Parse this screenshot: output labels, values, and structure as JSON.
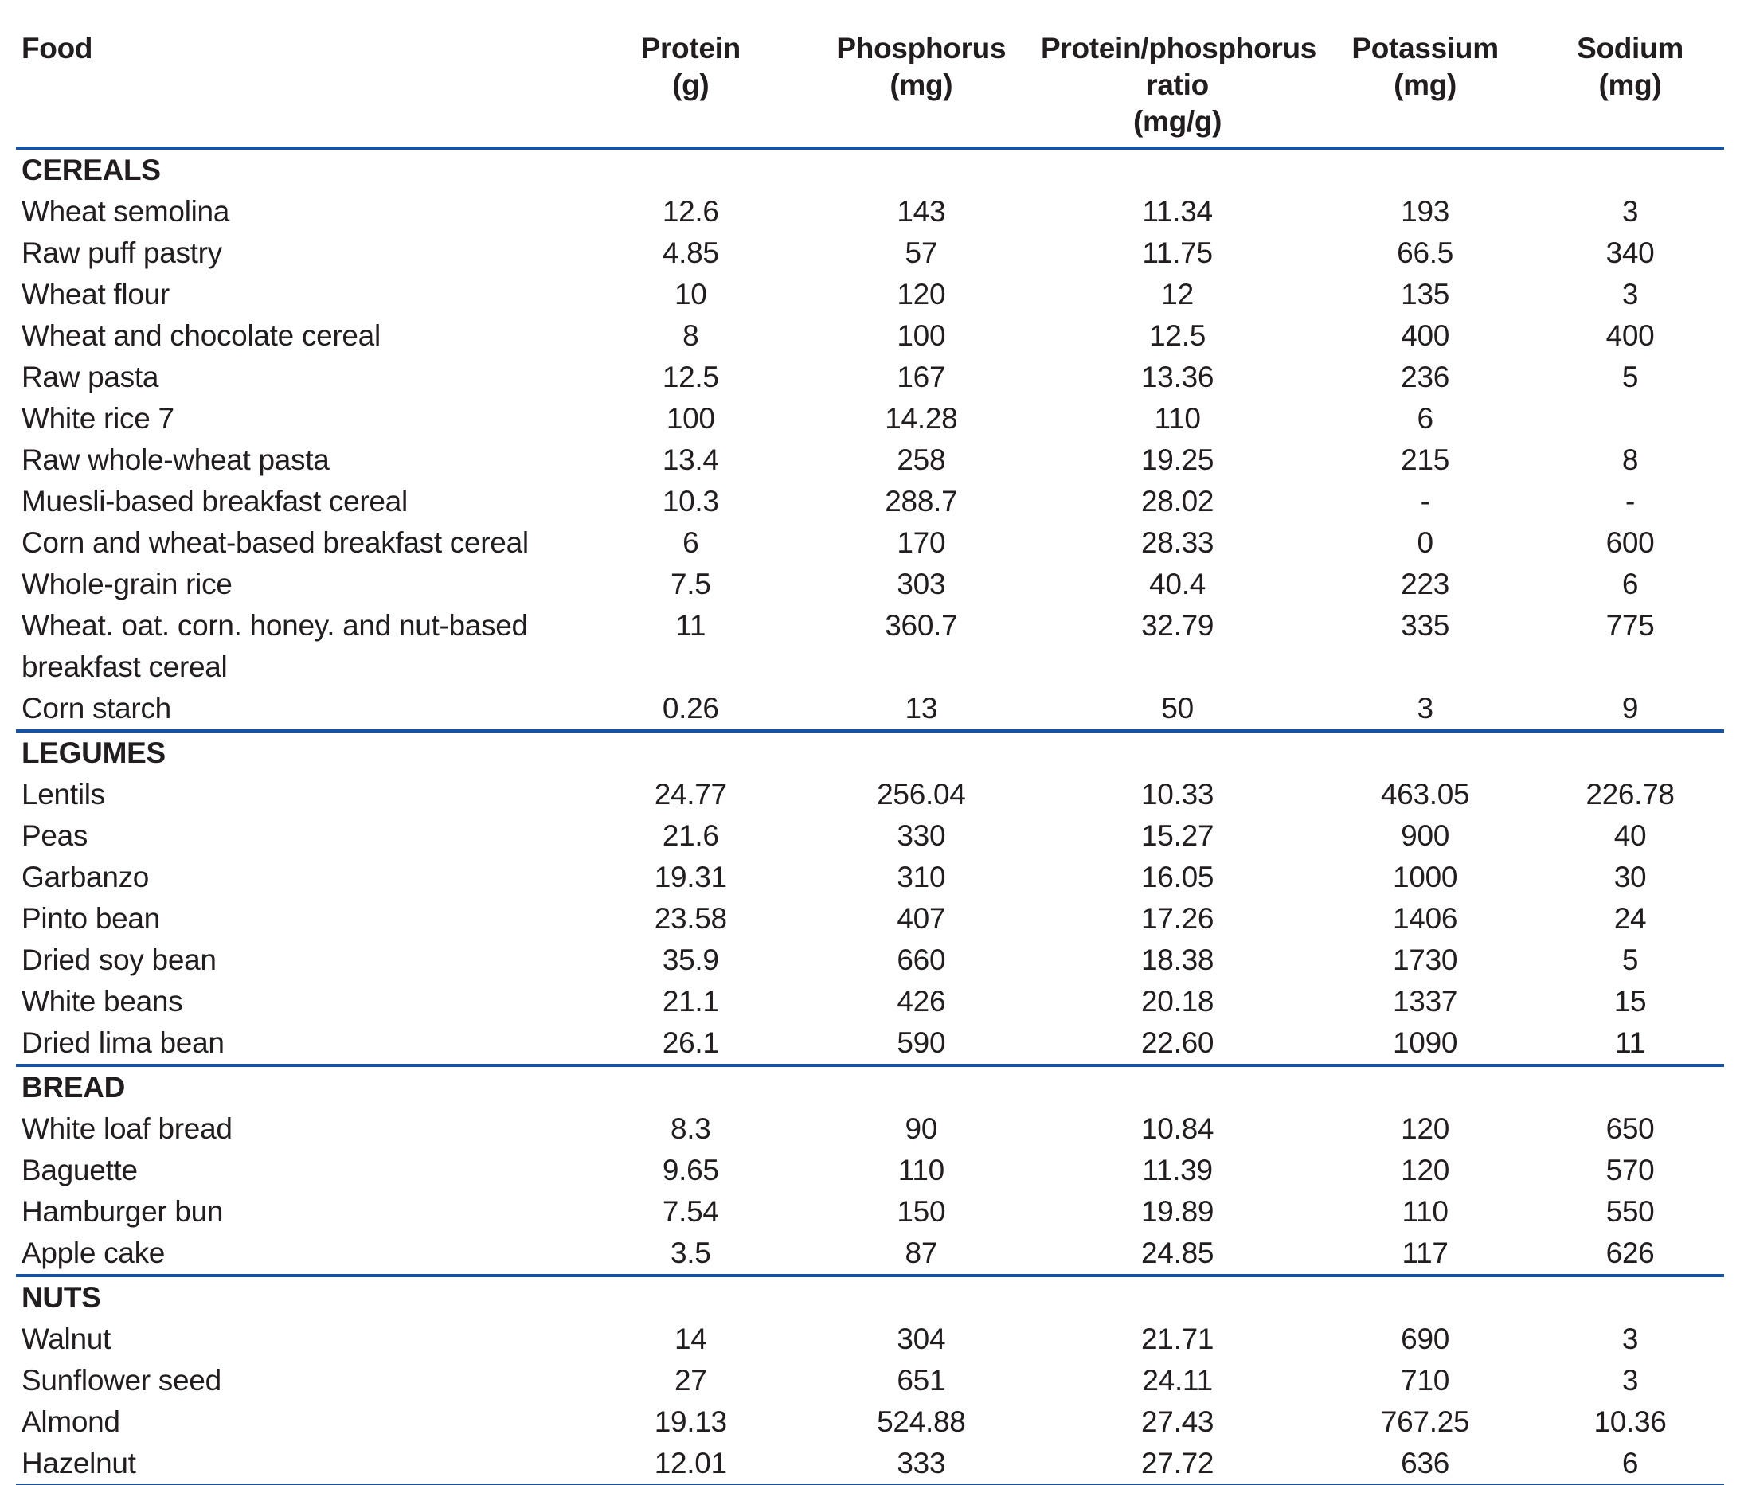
{
  "page": {
    "rule_color": "#1652a0",
    "text_color": "#221e20",
    "background": "#ffffff"
  },
  "table": {
    "header": {
      "food": "Food",
      "columns": [
        {
          "lines": [
            "Protein",
            "(g)"
          ]
        },
        {
          "lines": [
            "Phosphorus",
            "(mg)"
          ]
        },
        {
          "lines": [
            "Protein/phosphorus",
            "ratio",
            "(mg/g)"
          ]
        },
        {
          "lines": [
            "Potassium",
            "(mg)"
          ]
        },
        {
          "lines": [
            "Sodium",
            "(mg)"
          ]
        }
      ]
    },
    "sections": [
      {
        "title": "CEREALS",
        "rows": [
          {
            "food": "Wheat semolina",
            "values": [
              "12.6",
              "143",
              "11.34",
              "193",
              "3"
            ]
          },
          {
            "food": "Raw puff pastry",
            "values": [
              "4.85",
              "57",
              "11.75",
              "66.5",
              "340"
            ]
          },
          {
            "food": "Wheat flour",
            "values": [
              "10",
              "120",
              "12",
              "135",
              "3"
            ]
          },
          {
            "food": "Wheat and chocolate cereal",
            "values": [
              "8",
              "100",
              "12.5",
              "400",
              "400"
            ]
          },
          {
            "food": "Raw pasta",
            "values": [
              "12.5",
              "167",
              "13.36",
              "236",
              "5"
            ]
          },
          {
            "food": "White rice 7",
            "values": [
              "100",
              "14.28",
              "110",
              "6",
              ""
            ]
          },
          {
            "food": "Raw whole-wheat pasta",
            "values": [
              "13.4",
              "258",
              "19.25",
              "215",
              "8"
            ]
          },
          {
            "food": "Muesli-based breakfast cereal",
            "values": [
              "10.3",
              "288.7",
              "28.02",
              "-",
              "-"
            ]
          },
          {
            "food": "Corn and wheat-based breakfast cereal",
            "values": [
              "6",
              "170",
              "28.33",
              "0",
              "600"
            ]
          },
          {
            "food": "Whole-grain rice",
            "values": [
              "7.5",
              "303",
              "40.4",
              "223",
              "6"
            ]
          },
          {
            "food": "Wheat. oat. corn. honey. and nut-based\nbreakfast cereal",
            "values": [
              "11",
              "360.7",
              "32.79",
              "335",
              "775"
            ]
          },
          {
            "food": "Corn starch",
            "values": [
              "0.26",
              "13",
              "50",
              "3",
              "9"
            ]
          }
        ]
      },
      {
        "title": "LEGUMES",
        "rows": [
          {
            "food": "Lentils",
            "values": [
              "24.77",
              "256.04",
              "10.33",
              "463.05",
              "226.78"
            ]
          },
          {
            "food": "Peas",
            "values": [
              "21.6",
              "330",
              "15.27",
              "900",
              "40"
            ]
          },
          {
            "food": "Garbanzo",
            "values": [
              "19.31",
              "310",
              "16.05",
              "1000",
              "30"
            ]
          },
          {
            "food": "Pinto bean",
            "values": [
              "23.58",
              "407",
              "17.26",
              "1406",
              "24"
            ]
          },
          {
            "food": "Dried soy bean",
            "values": [
              "35.9",
              "660",
              "18.38",
              "1730",
              "5"
            ]
          },
          {
            "food": "White beans",
            "values": [
              "21.1",
              "426",
              "20.18",
              "1337",
              "15"
            ]
          },
          {
            "food": "Dried lima bean",
            "values": [
              "26.1",
              "590",
              "22.60",
              "1090",
              "11"
            ]
          }
        ]
      },
      {
        "title": "BREAD",
        "rows": [
          {
            "food": "White loaf bread",
            "values": [
              "8.3",
              "90",
              "10.84",
              "120",
              "650"
            ]
          },
          {
            "food": "Baguette",
            "values": [
              "9.65",
              "110",
              "11.39",
              "120",
              "570"
            ]
          },
          {
            "food": "Hamburger bun",
            "values": [
              "7.54",
              "150",
              "19.89",
              "110",
              "550"
            ]
          },
          {
            "food": "Apple cake",
            "values": [
              "3.5",
              "87",
              "24.85",
              "117",
              "626"
            ]
          }
        ]
      },
      {
        "title": "NUTS",
        "rows": [
          {
            "food": "Walnut",
            "values": [
              "14",
              "304",
              "21.71",
              "690",
              "3"
            ]
          },
          {
            "food": "Sunflower seed",
            "values": [
              "27",
              "651",
              "24.11",
              "710",
              "3"
            ]
          },
          {
            "food": "Almond",
            "values": [
              "19.13",
              "524.88",
              "27.43",
              "767.25",
              "10.36"
            ]
          },
          {
            "food": "Hazelnut",
            "values": [
              "12.01",
              "333",
              "27.72",
              "636",
              "6"
            ]
          }
        ]
      }
    ]
  }
}
